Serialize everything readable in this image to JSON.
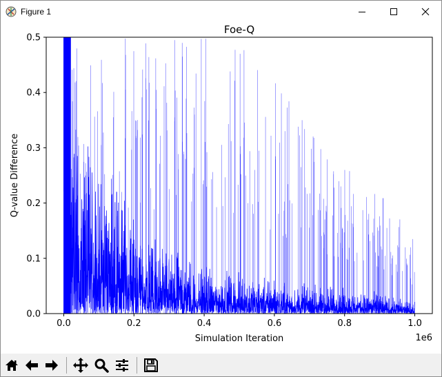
{
  "window": {
    "title": "Figure 1",
    "icons": [
      "app-icon",
      "minimize-icon",
      "maximize-icon",
      "close-icon"
    ]
  },
  "toolbar": {
    "buttons": [
      {
        "name": "home-button",
        "icon": "home-icon"
      },
      {
        "name": "back-button",
        "icon": "arrow-left-icon"
      },
      {
        "name": "forward-button",
        "icon": "arrow-right-icon"
      },
      {
        "name": "pan-button",
        "icon": "move-icon"
      },
      {
        "name": "zoom-button",
        "icon": "magnifier-icon"
      },
      {
        "name": "subplots-button",
        "icon": "sliders-icon"
      },
      {
        "name": "save-button",
        "icon": "floppy-disk-icon"
      }
    ]
  },
  "chart_data": {
    "type": "line",
    "title": "Foe-Q",
    "xlabel": "Simulation Iteration",
    "ylabel": "Q-value Difference",
    "x_offset_text": "1e6",
    "xlim": [
      -0.05,
      1.05
    ],
    "ylim": [
      0,
      0.5
    ],
    "xticks": [
      "0.0",
      "0.2",
      "0.4",
      "0.6",
      "0.8",
      "1.0"
    ],
    "yticks": [
      "0.0",
      "0.1",
      "0.2",
      "0.3",
      "0.4",
      "0.5"
    ],
    "grid": false,
    "line_color": "#0000ff",
    "series": [
      {
        "x": [
          0.0,
          0.005,
          0.01,
          0.02,
          0.05,
          0.1,
          0.15,
          0.2,
          0.25,
          0.3,
          0.35,
          0.4,
          0.45,
          0.5,
          0.55,
          0.6,
          0.65,
          0.7,
          0.75,
          0.8,
          0.85,
          0.9,
          0.95,
          1.0
        ],
        "dense_envelope": [
          0.5,
          0.5,
          0.5,
          0.32,
          0.28,
          0.24,
          0.2,
          0.16,
          0.12,
          0.1,
          0.085,
          0.07,
          0.065,
          0.06,
          0.055,
          0.05,
          0.048,
          0.045,
          0.042,
          0.04,
          0.035,
          0.03,
          0.025,
          0.02
        ],
        "spike_envelope": [
          0.5,
          0.5,
          0.5,
          0.5,
          0.5,
          0.5,
          0.5,
          0.5,
          0.5,
          0.5,
          0.5,
          0.5,
          0.5,
          0.5,
          0.45,
          0.42,
          0.38,
          0.35,
          0.3,
          0.27,
          0.25,
          0.22,
          0.18,
          0.14
        ]
      }
    ]
  }
}
